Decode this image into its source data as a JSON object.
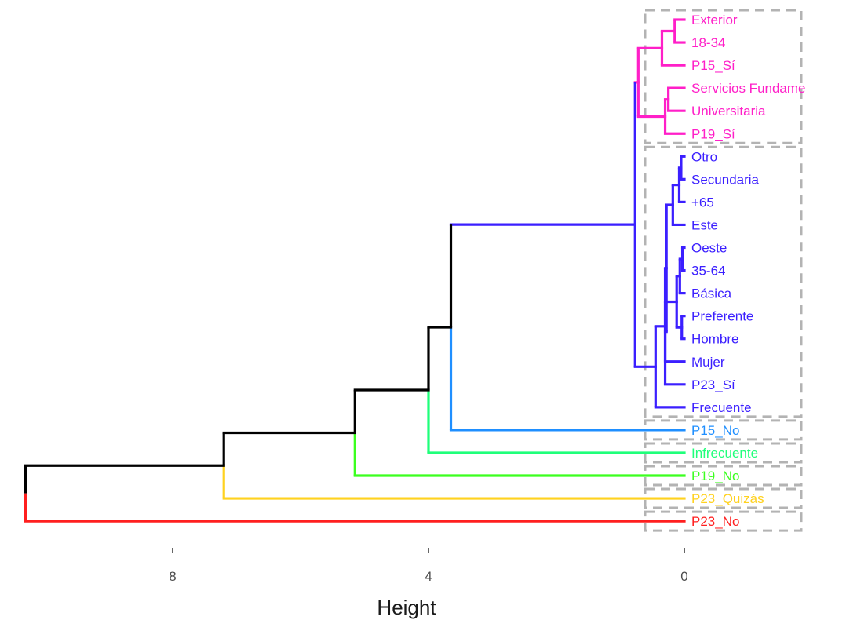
{
  "chart_data": {
    "type": "dendrogram",
    "title": "",
    "xlabel": "Height",
    "ylabel": "",
    "x_axis": {
      "reversed": true,
      "range": [
        10.5,
        0
      ],
      "ticks": [
        8,
        4,
        0
      ],
      "tick_labels": [
        "8",
        "4",
        "0"
      ]
    },
    "grid": false,
    "leaves": [
      {
        "label": "Exterior",
        "cluster": 0
      },
      {
        "label": "18-34",
        "cluster": 0
      },
      {
        "label": "P15_Sí",
        "cluster": 0
      },
      {
        "label": "Servicios Fundame",
        "cluster": 0
      },
      {
        "label": "Universitaria",
        "cluster": 0
      },
      {
        "label": "P19_Sí",
        "cluster": 0
      },
      {
        "label": "Otro",
        "cluster": 1
      },
      {
        "label": "Secundaria",
        "cluster": 1
      },
      {
        "label": "+65",
        "cluster": 1
      },
      {
        "label": "Este",
        "cluster": 1
      },
      {
        "label": "Oeste",
        "cluster": 1
      },
      {
        "label": "35-64",
        "cluster": 1
      },
      {
        "label": "Básica",
        "cluster": 1
      },
      {
        "label": "Preferente",
        "cluster": 1
      },
      {
        "label": "Hombre",
        "cluster": 1
      },
      {
        "label": "Mujer",
        "cluster": 1
      },
      {
        "label": "P23_Sí",
        "cluster": 1
      },
      {
        "label": "Frecuente",
        "cluster": 1
      },
      {
        "label": "P15_No",
        "cluster": 2
      },
      {
        "label": "Infrecuente",
        "cluster": 3
      },
      {
        "label": "P19_No",
        "cluster": 4
      },
      {
        "label": "P23_Quizás",
        "cluster": 5
      },
      {
        "label": "P23_No",
        "cluster": 6
      }
    ],
    "clusters": [
      {
        "id": 0,
        "color": "#ff1fc8",
        "first_leaf": 0,
        "last_leaf": 5
      },
      {
        "id": 1,
        "color": "#3b1fff",
        "first_leaf": 6,
        "last_leaf": 17
      },
      {
        "id": 2,
        "color": "#1f8fff",
        "first_leaf": 18,
        "last_leaf": 18
      },
      {
        "id": 3,
        "color": "#1fff7a",
        "first_leaf": 19,
        "last_leaf": 19
      },
      {
        "id": 4,
        "color": "#3bff1f",
        "first_leaf": 20,
        "last_leaf": 20
      },
      {
        "id": 5,
        "color": "#ffd21f",
        "first_leaf": 21,
        "last_leaf": 21
      },
      {
        "id": 6,
        "color": "#ff1f1f",
        "first_leaf": 22,
        "last_leaf": 22
      }
    ],
    "merges": [
      {
        "children": [
          0,
          1
        ],
        "height": 0.15,
        "color": "#ff1fc8"
      },
      {
        "children": [
          "m0",
          2
        ],
        "height": 0.35,
        "color": "#ff1fc8"
      },
      {
        "children": [
          3,
          4
        ],
        "height": 0.25,
        "color": "#ff1fc8"
      },
      {
        "children": [
          "m2",
          5
        ],
        "height": 0.3,
        "color": "#ff1fc8"
      },
      {
        "children": [
          "m1",
          "m3"
        ],
        "height": 0.72,
        "color": "#ff1fc8"
      },
      {
        "children": [
          6,
          7
        ],
        "height": 0.05,
        "color": "#3b1fff"
      },
      {
        "children": [
          "m5",
          8
        ],
        "height": 0.08,
        "color": "#3b1fff"
      },
      {
        "children": [
          "m6",
          9
        ],
        "height": 0.18,
        "color": "#3b1fff"
      },
      {
        "children": [
          10,
          11
        ],
        "height": 0.03,
        "color": "#3b1fff"
      },
      {
        "children": [
          "m8",
          12
        ],
        "height": 0.07,
        "color": "#3b1fff"
      },
      {
        "children": [
          13,
          14
        ],
        "height": 0.04,
        "color": "#3b1fff"
      },
      {
        "children": [
          "m9",
          "m10"
        ],
        "height": 0.12,
        "color": "#3b1fff"
      },
      {
        "children": [
          "m11",
          15
        ],
        "height": 0.3,
        "color": "#3b1fff"
      },
      {
        "children": [
          "m7",
          "m12"
        ],
        "height": 0.28,
        "color": "#3b1fff"
      },
      {
        "children": [
          "m13",
          16
        ],
        "height": 0.3,
        "color": "#3b1fff"
      },
      {
        "children": [
          "m14",
          17
        ],
        "height": 0.45,
        "color": "#3b1fff"
      },
      {
        "children": [
          "m4",
          "m15"
        ],
        "height": 0.77,
        "color": "#3b1fff"
      },
      {
        "children": [
          "m16",
          18
        ],
        "height": 3.65,
        "color": "#000000"
      },
      {
        "children": [
          "m17",
          19
        ],
        "height": 4.0,
        "color": "#000000"
      },
      {
        "children": [
          "m18",
          20
        ],
        "height": 5.15,
        "color": "#000000"
      },
      {
        "children": [
          "m19",
          21
        ],
        "height": 7.2,
        "color": "#000000"
      },
      {
        "children": [
          "m20",
          22
        ],
        "height": 10.3,
        "color": "#000000"
      }
    ]
  }
}
